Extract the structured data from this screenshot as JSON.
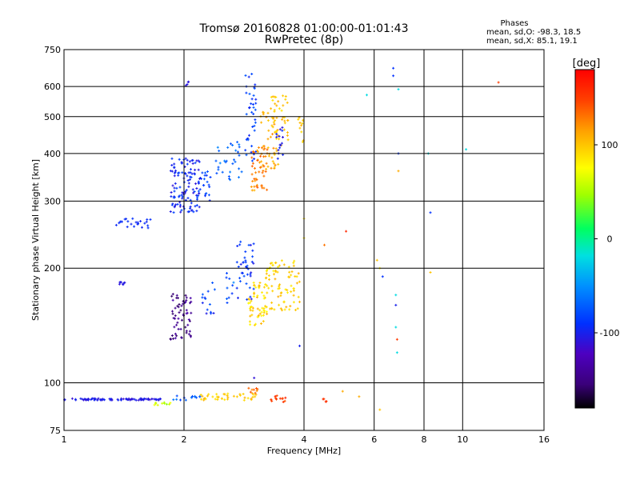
{
  "chart_data": {
    "type": "scatter",
    "title": "Tromsø 20160828 01:00:00-01:01:43",
    "subtitle": "RwPretec (8p)",
    "xlabel": "Frequency [MHz]",
    "ylabel": "Stationary phase Virtual Height [km]",
    "x_scale": "log",
    "y_scale": "log",
    "xlim": [
      1,
      16
    ],
    "ylim": [
      75,
      750
    ],
    "x_ticks": [
      1,
      2,
      4,
      6,
      8,
      10,
      16
    ],
    "x_tick_labels": [
      "1",
      "2",
      "4",
      "6",
      "8",
      "10",
      "16"
    ],
    "y_ticks": [
      75,
      100,
      200,
      300,
      400,
      500,
      600,
      750
    ],
    "y_tick_labels": [
      "75",
      "100",
      "200",
      "300",
      "400",
      "500",
      "600",
      "750"
    ],
    "grid": true,
    "stats": {
      "heading": "Phases",
      "line_o": "mean, sd,O: -98.3, 18.5",
      "line_x": "mean, sd,X:  85.1, 19.1"
    },
    "colorbar": {
      "unit": "[deg]",
      "range": [
        -180,
        180
      ],
      "ticks": [
        100,
        0,
        -100
      ],
      "tick_labels": [
        "100",
        "0",
        "-100"
      ]
    },
    "clusters": [
      {
        "x": [
          1.0,
          1.75
        ],
        "y": [
          90,
          91
        ],
        "phase": [
          -115,
          -95
        ],
        "n": 90
      },
      {
        "x": [
          1.68,
          1.85
        ],
        "y": [
          87,
          89
        ],
        "phase": [
          40,
          80
        ],
        "n": 10
      },
      {
        "x": [
          1.88,
          2.2
        ],
        "y": [
          90,
          93
        ],
        "phase": [
          -90,
          -60
        ],
        "n": 14
      },
      {
        "x": [
          2.2,
          3.05
        ],
        "y": [
          90,
          94
        ],
        "phase": [
          85,
          110
        ],
        "n": 40
      },
      {
        "x": [
          2.9,
          3.1
        ],
        "y": [
          93,
          97
        ],
        "phase": [
          120,
          150
        ],
        "n": 8
      },
      {
        "x": [
          3.3,
          3.6
        ],
        "y": [
          89,
          93
        ],
        "phase": [
          140,
          165
        ],
        "n": 14
      },
      {
        "x": [
          4.3,
          4.6
        ],
        "y": [
          89,
          91
        ],
        "phase": [
          150,
          160
        ],
        "n": 5
      },
      {
        "x": [
          1.37,
          1.42
        ],
        "y": [
          181,
          184
        ],
        "phase": [
          -110,
          -100
        ],
        "n": 8
      },
      {
        "x": [
          1.35,
          1.65
        ],
        "y": [
          255,
          270
        ],
        "phase": [
          -100,
          -90
        ],
        "n": 24
      },
      {
        "x": [
          1.85,
          2.1
        ],
        "y": [
          130,
          175
        ],
        "phase": [
          -160,
          -130
        ],
        "n": 60
      },
      {
        "x": [
          2.22,
          2.4
        ],
        "y": [
          145,
          185
        ],
        "phase": [
          -110,
          -70
        ],
        "n": 14
      },
      {
        "x": [
          2.55,
          2.7
        ],
        "y": [
          155,
          200
        ],
        "phase": [
          -90,
          -50
        ],
        "n": 10
      },
      {
        "x": [
          2.7,
          3.0
        ],
        "y": [
          165,
          235
        ],
        "phase": [
          -105,
          -75
        ],
        "n": 40
      },
      {
        "x": [
          2.9,
          3.25
        ],
        "y": [
          140,
          185
        ],
        "phase": [
          75,
          110
        ],
        "n": 60
      },
      {
        "x": [
          3.2,
          3.9
        ],
        "y": [
          155,
          210
        ],
        "phase": [
          80,
          110
        ],
        "n": 80
      },
      {
        "x": [
          1.85,
          2.2
        ],
        "y": [
          280,
          390
        ],
        "phase": [
          -110,
          -80
        ],
        "n": 120
      },
      {
        "x": [
          2.15,
          2.35
        ],
        "y": [
          300,
          360
        ],
        "phase": [
          -100,
          -70
        ],
        "n": 20
      },
      {
        "x": [
          2.4,
          2.8
        ],
        "y": [
          340,
          430
        ],
        "phase": [
          -80,
          -55
        ],
        "n": 30
      },
      {
        "x": [
          2.85,
          3.05
        ],
        "y": [
          380,
          650
        ],
        "phase": [
          -100,
          -70
        ],
        "n": 40
      },
      {
        "x": [
          2.95,
          3.25
        ],
        "y": [
          320,
          420
        ],
        "phase": [
          105,
          140
        ],
        "n": 50
      },
      {
        "x": [
          3.1,
          3.45
        ],
        "y": [
          360,
          520
        ],
        "phase": [
          95,
          125
        ],
        "n": 40
      },
      {
        "x": [
          3.3,
          3.65
        ],
        "y": [
          420,
          570
        ],
        "phase": [
          85,
          110
        ],
        "n": 40
      },
      {
        "x": [
          3.85,
          4.0
        ],
        "y": [
          420,
          500
        ],
        "phase": [
          90,
          110
        ],
        "n": 12
      },
      {
        "x": [
          3.4,
          3.55
        ],
        "y": [
          380,
          480
        ],
        "phase": [
          -110,
          -90
        ],
        "n": 15
      },
      {
        "x": [
          2.0,
          2.06
        ],
        "y": [
          595,
          620
        ],
        "phase": [
          -110,
          -100
        ],
        "n": 4
      }
    ],
    "scattered_points": [
      {
        "x": 5.75,
        "y": 570,
        "phase": -20
      },
      {
        "x": 6.7,
        "y": 670,
        "phase": -90
      },
      {
        "x": 6.7,
        "y": 640,
        "phase": -90
      },
      {
        "x": 6.9,
        "y": 590,
        "phase": -20
      },
      {
        "x": 6.9,
        "y": 400,
        "phase": -90
      },
      {
        "x": 6.9,
        "y": 360,
        "phase": 110
      },
      {
        "x": 8.2,
        "y": 400,
        "phase": -20
      },
      {
        "x": 10.2,
        "y": 410,
        "phase": -20
      },
      {
        "x": 12.3,
        "y": 615,
        "phase": 150
      },
      {
        "x": 8.3,
        "y": 280,
        "phase": -90
      },
      {
        "x": 4.0,
        "y": 270,
        "phase": 90
      },
      {
        "x": 4.0,
        "y": 240,
        "phase": 90
      },
      {
        "x": 4.5,
        "y": 230,
        "phase": 130
      },
      {
        "x": 5.1,
        "y": 250,
        "phase": 160
      },
      {
        "x": 6.1,
        "y": 210,
        "phase": 100
      },
      {
        "x": 6.2,
        "y": 200,
        "phase": 80
      },
      {
        "x": 6.3,
        "y": 190,
        "phase": -90
      },
      {
        "x": 6.8,
        "y": 170,
        "phase": -20
      },
      {
        "x": 6.8,
        "y": 160,
        "phase": -100
      },
      {
        "x": 6.8,
        "y": 140,
        "phase": -20
      },
      {
        "x": 6.85,
        "y": 130,
        "phase": 150
      },
      {
        "x": 6.85,
        "y": 120,
        "phase": -20
      },
      {
        "x": 8.3,
        "y": 195,
        "phase": 100
      },
      {
        "x": 3.9,
        "y": 125,
        "phase": -100
      },
      {
        "x": 5.5,
        "y": 92,
        "phase": 110
      },
      {
        "x": 5.0,
        "y": 95,
        "phase": 110
      },
      {
        "x": 6.2,
        "y": 85,
        "phase": 100
      },
      {
        "x": 3.0,
        "y": 103,
        "phase": -110
      }
    ]
  }
}
